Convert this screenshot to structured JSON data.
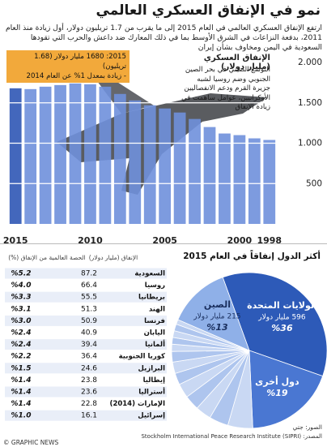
{
  "title": "نمو في الإنفاق العسكري العالمي",
  "subtitle": "ارتفع الإنفاق العسكري العالمي في العام 2015 إلى ما يقرب من 1.7 تريليون دولار، أول زيادة منذ العام 2011، بدفعة النزاعات في الشرق الأوسط بما في ذلك المعارك ضد داعش والحرب التي تقودها السعودية في اليمن ومخاوف بشأن إيران",
  "chart_data": [
    {
      "type": "bar",
      "y_label": "الإنفاق العسكري (مليار دولار)",
      "note": "التوسع الصيني في بحر الصين الجنوبي وضم روسيا لشبه جزيرة القرم ودعم الانفصاليين الأوكرانيين، عوامل ساهمت في زيادة الإنفاق",
      "callout": [
        "2015: 1680 مليار دولار (1.68 تريليون)",
        "- زيادة بمعدل 1% عن العام 2014"
      ],
      "categories": [
        "1998",
        null,
        "2000",
        null,
        null,
        null,
        null,
        "2005",
        null,
        null,
        null,
        null,
        "2010",
        null,
        null,
        null,
        null,
        "2015"
      ],
      "values": [
        1040,
        1060,
        1100,
        1120,
        1200,
        1300,
        1380,
        1430,
        1470,
        1530,
        1610,
        1700,
        1730,
        1740,
        1720,
        1700,
        1670,
        1680
      ],
      "color": "#6f90dc",
      "highlight_color": "#2f57b5",
      "ylim": [
        0,
        2000
      ],
      "yticks": [
        500,
        {
          "value": 1000,
          "label": "1.000"
        },
        {
          "value": 1500,
          "label": "1.500"
        },
        {
          "value": 2000,
          "label": "2.000"
        }
      ],
      "grid": true
    },
    {
      "type": "pie",
      "title": "أكثر الدول إنفاقاً في العام 2015",
      "categories": [
        "الولايات المتحدة",
        "دول أخرى",
        null,
        null,
        null,
        null,
        null,
        null,
        null,
        null,
        null,
        null,
        null,
        null,
        null,
        "الصين"
      ],
      "values": [
        36,
        19,
        5.2,
        4.0,
        3.3,
        3.1,
        3.0,
        2.4,
        2.4,
        2.2,
        1.5,
        1.4,
        1.4,
        1.4,
        1.0,
        13
      ],
      "value_labels": [
        "%36",
        "%19",
        null,
        null,
        null,
        null,
        null,
        null,
        null,
        null,
        null,
        null,
        null,
        null,
        null,
        "%13"
      ],
      "amount_labels": [
        "596 مليار دولار",
        null,
        null,
        null,
        null,
        null,
        null,
        null,
        null,
        null,
        null,
        null,
        null,
        null,
        null,
        "215 مليار دولار"
      ],
      "colors": [
        "#2d5ab8",
        "#4a77d2",
        "#c9d8f3",
        "#aec5ee",
        "#c9d8f3",
        "#aec5ee",
        "#c9d8f3",
        "#aec5ee",
        "#c9d8f3",
        "#aec5ee",
        "#c9d8f3",
        "#aec5ee",
        "#c9d8f3",
        "#aec5ee",
        "#c9d8f3",
        "#8fb0e8"
      ]
    }
  ],
  "table": {
    "header": [
      "الإنفاق (مليار دولار)",
      "الحصة العالمية من الإنفاق (%)"
    ],
    "rows": [
      [
        "السعودية",
        "87.2",
        "%5.2"
      ],
      [
        "روسيا",
        "66.4",
        "%4.0"
      ],
      [
        "بريطانيا",
        "55.5",
        "%3.3"
      ],
      [
        "الهند",
        "51.3",
        "%3.1"
      ],
      [
        "فرنسا",
        "50.9",
        "%3.0"
      ],
      [
        "اليابان",
        "40.9",
        "%2.4"
      ],
      [
        "ألمانيا",
        "39.4",
        "%2.4"
      ],
      [
        "كوريا الجنوبية",
        "36.4",
        "%2.2"
      ],
      [
        "البرازيل",
        "24.6",
        "%1.5"
      ],
      [
        "إيطاليا",
        "23.8",
        "%1.4"
      ],
      [
        "أستراليا",
        "23.6",
        "%1.4"
      ],
      [
        "الإمارات (2014)",
        "22.8",
        "%1.4"
      ],
      [
        "إسرائيل",
        "16.1",
        "%1.0"
      ]
    ]
  },
  "photo_credit": "الصور: جتي",
  "source": "المصدر: (Stockholm International Peace Research Institute (SIPRI",
  "footer": "© GRAPHIC NEWS"
}
